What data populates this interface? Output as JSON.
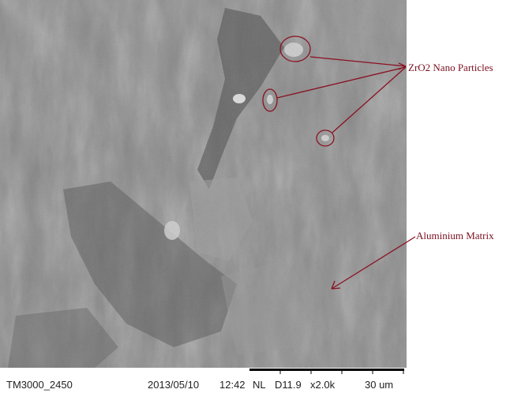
{
  "annotations": [
    {
      "label": "ZrO2 Nano Particles"
    },
    {
      "label": "Aluminium Matrix"
    }
  ],
  "footer": {
    "instrument": "TM3000_2450",
    "date": "2013/05/10",
    "time": "12:42",
    "mode": "NL",
    "working_distance": "D11.9",
    "magnification": "x2.0k",
    "scale": "30 um"
  }
}
